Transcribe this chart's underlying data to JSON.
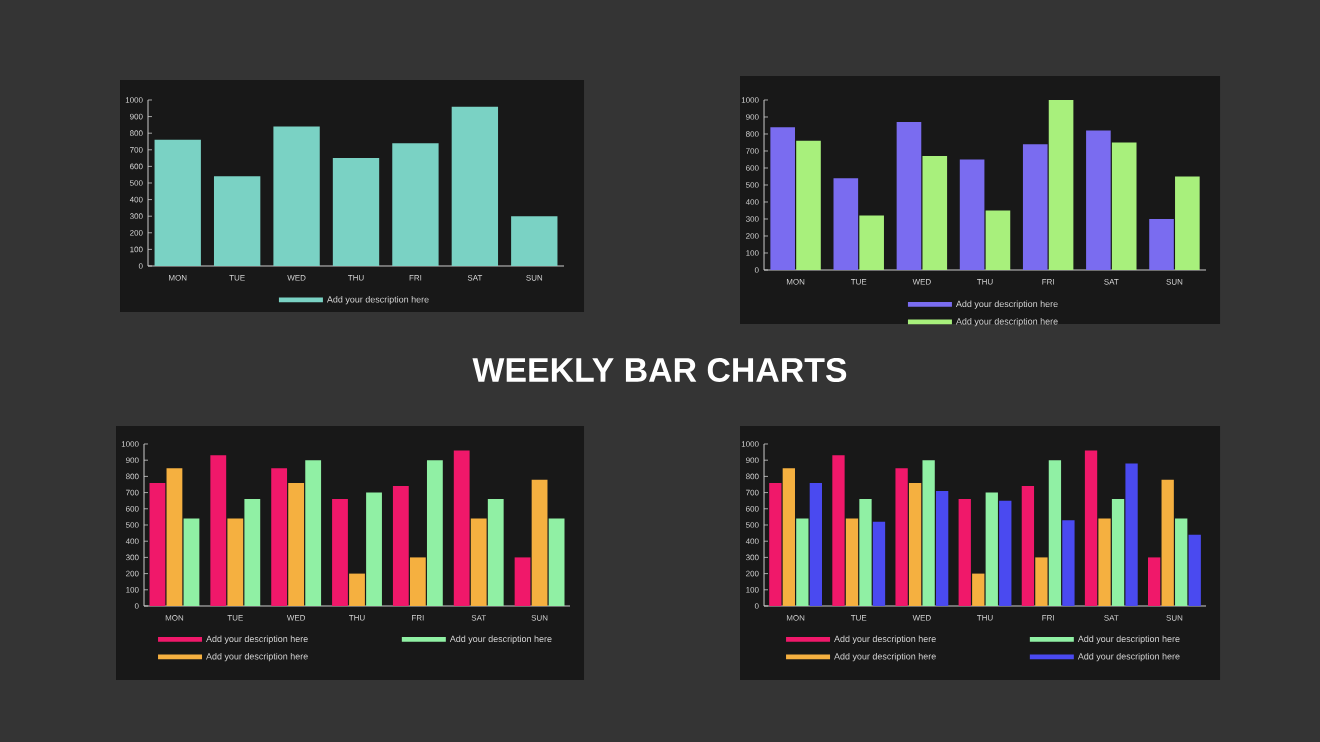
{
  "chart_data": [
    {
      "type": "bar",
      "categories": [
        "MON",
        "TUE",
        "WED",
        "THU",
        "FRI",
        "SAT",
        "SUN"
      ],
      "ylim": [
        0,
        1000
      ],
      "yticks": [
        0,
        100,
        200,
        300,
        400,
        500,
        600,
        700,
        800,
        900,
        1000
      ],
      "legend": "bottom",
      "series": [
        {
          "name": "Add your description here",
          "color": "#7ad2c4",
          "values": [
            760,
            540,
            840,
            650,
            740,
            960,
            300
          ]
        }
      ]
    },
    {
      "type": "bar",
      "categories": [
        "MON",
        "TUE",
        "WED",
        "THU",
        "FRI",
        "SAT",
        "SUN"
      ],
      "ylim": [
        0,
        1000
      ],
      "yticks": [
        0,
        100,
        200,
        300,
        400,
        500,
        600,
        700,
        800,
        900,
        1000
      ],
      "legend": "bottom",
      "series": [
        {
          "name": "Add your description here",
          "color": "#7a6cf0",
          "values": [
            840,
            540,
            870,
            650,
            740,
            820,
            300
          ]
        },
        {
          "name": "Add your description here",
          "color": "#a8f07c",
          "values": [
            760,
            320,
            670,
            350,
            1000,
            750,
            550
          ]
        }
      ]
    },
    {
      "type": "other",
      "title": "WEEKLY BAR CHARTS"
    },
    {
      "type": "bar",
      "categories": [
        "MON",
        "TUE",
        "WED",
        "THU",
        "FRI",
        "SAT",
        "SUN"
      ],
      "ylim": [
        0,
        1000
      ],
      "yticks": [
        0,
        100,
        200,
        300,
        400,
        500,
        600,
        700,
        800,
        900,
        1000
      ],
      "legend": "bottom",
      "series": [
        {
          "name": "Add your description here",
          "color": "#f0186a",
          "values": [
            760,
            930,
            850,
            660,
            740,
            960,
            300
          ]
        },
        {
          "name": "Add your description here",
          "color": "#f5b040",
          "values": [
            850,
            540,
            760,
            200,
            300,
            540,
            780
          ]
        },
        {
          "name": "Add your description here",
          "color": "#90f0a4",
          "values": [
            540,
            660,
            900,
            700,
            900,
            660,
            540
          ]
        }
      ]
    },
    {
      "type": "bar",
      "categories": [
        "MON",
        "TUE",
        "WED",
        "THU",
        "FRI",
        "SAT",
        "SUN"
      ],
      "ylim": [
        0,
        1000
      ],
      "yticks": [
        0,
        100,
        200,
        300,
        400,
        500,
        600,
        700,
        800,
        900,
        1000
      ],
      "legend": "bottom",
      "series": [
        {
          "name": "Add your description here",
          "color": "#f0186a",
          "values": [
            760,
            930,
            850,
            660,
            740,
            960,
            300
          ]
        },
        {
          "name": "Add your description here",
          "color": "#f5b040",
          "values": [
            850,
            540,
            760,
            200,
            300,
            540,
            780
          ]
        },
        {
          "name": "Add your description here",
          "color": "#90f0a4",
          "values": [
            540,
            660,
            900,
            700,
            900,
            660,
            540
          ]
        },
        {
          "name": "Add your description here",
          "color": "#4a4af0",
          "values": [
            760,
            520,
            710,
            650,
            530,
            880,
            440
          ]
        }
      ]
    }
  ]
}
